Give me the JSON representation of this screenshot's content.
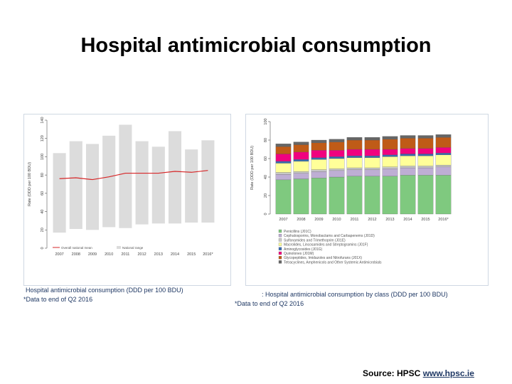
{
  "slide": {
    "title": "Hospital antimicrobial consumption",
    "source_prefix": "Source: HPSC ",
    "source_link": "www.hpsc.ie"
  },
  "captions": {
    "left_main": "Hospital antimicrobial consumption (DDD per 100 BDU)",
    "left_note": "*Data to end of Q2 2016",
    "right_main": ": Hospital antimicrobial consumption by class (DDD per 100 BDU)",
    "right_note": "*Data to end of Q2 2016"
  },
  "chart_data": [
    {
      "type": "bar",
      "ylabel": "Rate (DDD per 100 BDU)",
      "ylim": [
        0,
        140
      ],
      "yticks": [
        0,
        20,
        40,
        60,
        80,
        100,
        120,
        140
      ],
      "categories": [
        "2007",
        "2008",
        "2009",
        "2010",
        "2011",
        "2012",
        "2013",
        "2014",
        "2015",
        "2016*"
      ],
      "range_low": [
        17,
        21,
        20,
        23,
        22,
        26,
        27,
        27,
        28,
        28
      ],
      "range_high": [
        104,
        117,
        114,
        123,
        135,
        117,
        111,
        128,
        108,
        118
      ],
      "mean": [
        76,
        77,
        75,
        78,
        82,
        82,
        82,
        84,
        83,
        85
      ],
      "legend": [
        "Overall national mean",
        "National range"
      ],
      "colors": {
        "range": "#dcdcdc",
        "mean": "#d62728"
      },
      "grid": false,
      "legend_position": "bottom"
    },
    {
      "type": "bar",
      "stacked": true,
      "ylabel": "Rate (DDD per 100 BDU)",
      "ylim": [
        0,
        100
      ],
      "yticks": [
        0,
        20,
        40,
        60,
        80,
        100
      ],
      "categories": [
        "2007",
        "2008",
        "2009",
        "2010",
        "2011",
        "2012",
        "2013",
        "2014",
        "2015",
        "2016*"
      ],
      "series": [
        {
          "name": "Penicillins (J01C)",
          "color": "#7fc97f",
          "values": [
            37,
            38,
            39,
            40,
            41,
            41,
            41,
            42,
            42,
            42
          ]
        },
        {
          "name": "Cephalosporins, Monobactams and Carbapenems (J01D)",
          "color": "#beaed4",
          "values": [
            6,
            6,
            7,
            7,
            7,
            7,
            8,
            8,
            8,
            9
          ]
        },
        {
          "name": "Sulfonamides and Trimethoprim (J01E)",
          "color": "#c9c9c9",
          "values": [
            2,
            2,
            2,
            2,
            2,
            2,
            2,
            2,
            2,
            2
          ]
        },
        {
          "name": "Macrolides, Lincosamides and Streptogramins (J01F)",
          "color": "#ffff99",
          "values": [
            10,
            11,
            11,
            11,
            11,
            11,
            11,
            11,
            11,
            11
          ]
        },
        {
          "name": "Aminoglycosides (J01G)",
          "color": "#386cb0",
          "values": [
            2,
            2,
            2,
            2,
            2,
            2,
            2,
            2,
            2,
            2
          ]
        },
        {
          "name": "Quinolones (J01M)",
          "color": "#f0027f",
          "values": [
            8,
            8,
            8,
            7,
            7,
            7,
            6,
            6,
            6,
            6
          ]
        },
        {
          "name": "Glycopeptides, Imidazoles and Nitrofurans (J01X)",
          "color": "#bf5b17",
          "values": [
            8,
            8,
            8,
            9,
            10,
            10,
            11,
            11,
            11,
            11
          ]
        },
        {
          "name": "Tetracyclines, Amphenicols and Other Systemic Antimicrobials",
          "color": "#666666",
          "values": [
            3,
            3,
            3,
            3,
            3,
            3,
            3,
            3,
            3,
            3
          ]
        }
      ],
      "grid": false,
      "legend_position": "bottom"
    }
  ]
}
